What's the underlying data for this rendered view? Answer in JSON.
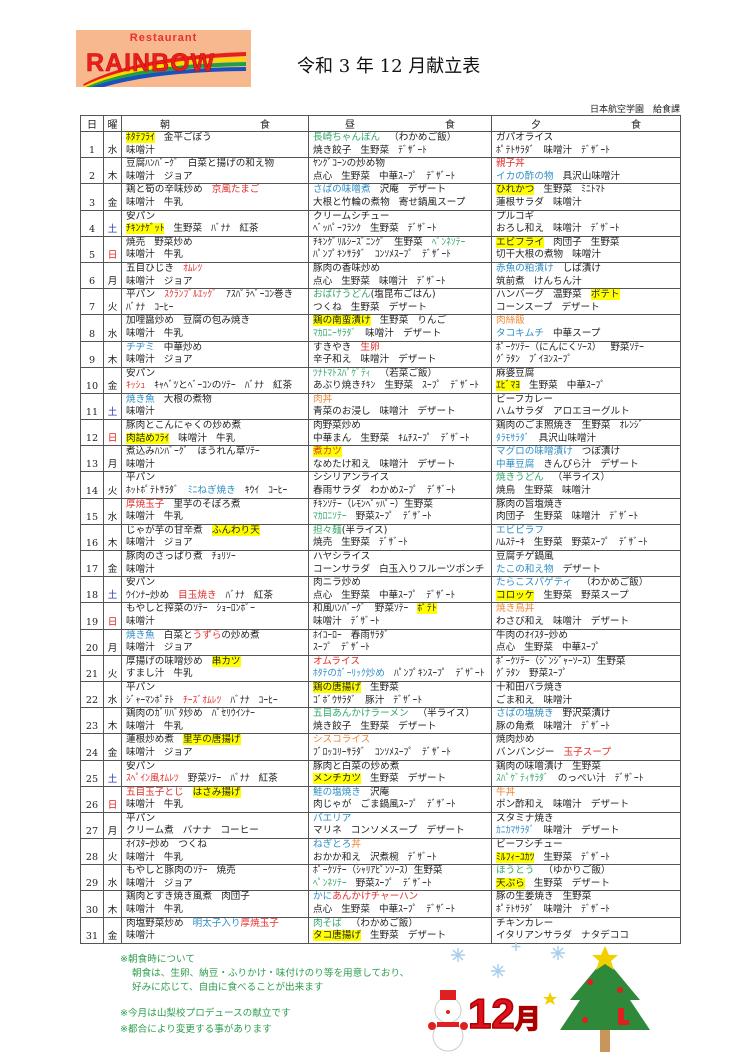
{
  "header": {
    "logo_top": "Restaurant",
    "logo_main": "RAINBOW",
    "title": "令和 3 年 12 月献立表",
    "org": "日本航空学園　給食課"
  },
  "columns": {
    "day": "日",
    "weekday": "曜",
    "breakfast": [
      "朝",
      "食"
    ],
    "lunch": [
      "昼",
      "食"
    ],
    "dinner": [
      "夕",
      "食"
    ]
  },
  "colors": {
    "highlight": "#ffff00",
    "red": "#e3302c",
    "blue": "#2f8ec6",
    "green": "#33a86a",
    "orange": "#ee8a3a",
    "saturday": "#3040b0",
    "sunday": "#e02020",
    "notes": "#2e9e4e"
  },
  "days": [
    {
      "d": "1",
      "w": "水",
      "b": [
        [
          [
            "ﾎﾀﾃﾌﾗｲ",
            "y"
          ],
          "金平ごぼう"
        ],
        [
          "味噌汁"
        ]
      ],
      "l": [
        [
          [
            "長崎ちゃんぽん",
            "g"
          ],
          "（わかめご飯）"
        ],
        [
          "焼き餃子",
          "生野菜",
          "ﾃﾞｻﾞｰﾄ"
        ]
      ],
      "s": [
        [
          "ガパオライス"
        ],
        [
          "ﾎﾟﾃﾄｻﾗﾀﾞ",
          "味噌汁",
          "ﾃﾞｻﾞｰﾄ"
        ]
      ]
    },
    {
      "d": "2",
      "w": "木",
      "b": [
        [
          "豆腐ﾊﾝﾊﾞｰｸﾞ",
          "白菜と揚げの和え物"
        ],
        [
          "味噌汁",
          "ジョア"
        ]
      ],
      "l": [
        [
          "ﾔﾝｸﾞｺｰﾝの炒め物"
        ],
        [
          "点心",
          "生野菜",
          "中華ｽｰﾌﾟ",
          "ﾃﾞｻﾞｰﾄ"
        ]
      ],
      "s": [
        [
          [
            "親子丼",
            "r"
          ]
        ],
        [
          [
            "イカの酢の物",
            "b"
          ],
          "具沢山味噌汁"
        ]
      ]
    },
    {
      "d": "3",
      "w": "金",
      "b": [
        [
          "鶏と筍の辛味炒め",
          [
            "京風たまご",
            "r"
          ]
        ],
        [
          "味噌汁",
          "牛乳"
        ]
      ],
      "l": [
        [
          [
            "さばの味噌煮",
            "b"
          ],
          "沢庵",
          "デザート"
        ],
        [
          "大根と竹輪の煮物",
          "寄せ鍋風スープ"
        ]
      ],
      "s": [
        [
          [
            "ひれかつ",
            "y"
          ],
          "生野菜",
          "ﾐﾆﾄﾏﾄ"
        ],
        [
          "蓮根サラダ",
          "味噌汁"
        ]
      ]
    },
    {
      "d": "4",
      "w": "土",
      "b": [
        [
          "安パン"
        ],
        [
          [
            "ﾁｷﾝﾅｹﾞｯﾄ",
            "y"
          ],
          "生野菜",
          "ﾊﾞﾅﾅ",
          "紅茶"
        ]
      ],
      "l": [
        [
          "クリームシチュー"
        ],
        [
          "ﾍﾞｯﾊﾟｰﾌﾗﾝｸ",
          "生野菜",
          "ﾃﾞｻﾞｰﾄ"
        ]
      ],
      "s": [
        [
          "プルコギ"
        ],
        [
          "おろし和え",
          "味噌汁",
          "ﾃﾞｻﾞｰﾄ"
        ]
      ]
    },
    {
      "d": "5",
      "w": "日",
      "b": [
        [
          "焼売",
          "野菜炒め"
        ],
        [
          "味噌汁",
          "牛乳"
        ]
      ],
      "l": [
        [
          "ﾁｷﾝｸﾞﾘﾙｼｰｽﾞﾆﾝｸﾞ",
          "生野菜",
          [
            "ﾍﾟﾝﾈｿﾃｰ",
            "g"
          ]
        ],
        [
          "ﾊﾟﾝﾌﾟｷﾝｻﾗﾀﾞ",
          "ｺﾝｿﾒｽｰﾌﾟ",
          "ﾃﾞｻﾞｰﾄ"
        ]
      ],
      "s": [
        [
          [
            "エビフライ",
            "y"
          ],
          "肉団子",
          "生野菜"
        ],
        [
          "切干大根の煮物",
          "味噌汁"
        ]
      ]
    },
    {
      "d": "6",
      "w": "月",
      "b": [
        [
          "五目ひじき",
          [
            "ｵﾑﾚﾂ",
            "r"
          ]
        ],
        [
          "味噌汁",
          "ジョア"
        ]
      ],
      "l": [
        [
          "豚肉の香味炒め"
        ],
        [
          "点心",
          "生野菜",
          "味噌汁",
          "ﾃﾞｻﾞｰﾄ"
        ]
      ],
      "s": [
        [
          [
            "赤魚の粕漬け",
            "b"
          ],
          "しば漬け"
        ],
        [
          "筑前煮",
          "けんちん汁"
        ]
      ]
    },
    {
      "d": "7",
      "w": "火",
      "b": [
        [
          "平パン",
          [
            "ｽｸﾗﾝﾌﾞﾙｴｯｸﾞ",
            "r"
          ],
          "ｱｽﾊﾟﾗﾍﾞｰｺﾝ巻き"
        ],
        [
          "ﾊﾞﾅﾅ",
          "ｺｰﾋｰ"
        ]
      ],
      "l": [
        [
          [
            "おばけうどん",
            "g+"
          ],
          "(塩昆布ごはん)"
        ],
        [
          "つくね",
          "生野菜",
          "デザート"
        ]
      ],
      "s": [
        [
          "ハンバーグ",
          "温野菜",
          [
            "ポテト",
            "y"
          ]
        ],
        [
          "コーンスープ",
          "デザート"
        ]
      ]
    },
    {
      "d": "8",
      "w": "水",
      "b": [
        [
          "加哩醤炒め",
          "豆腐の包み焼き"
        ],
        [
          "味噌汁",
          "牛乳"
        ]
      ],
      "l": [
        [
          [
            "鶏の南蛮漬け",
            "y"
          ],
          "生野菜",
          "りんご"
        ],
        [
          [
            "ﾏｶﾛﾆｰｻﾗﾀﾞ",
            "g"
          ],
          "味噌汁",
          "デザート"
        ]
      ],
      "s": [
        [
          [
            "肉絲飯",
            "o"
          ]
        ],
        [
          [
            "タコキムチ",
            "b"
          ],
          "中華スープ"
        ]
      ]
    },
    {
      "d": "9",
      "w": "木",
      "b": [
        [
          [
            "チヂミ",
            "b"
          ],
          "中華炒め"
        ],
        [
          "味噌汁",
          "ジョア"
        ]
      ],
      "l": [
        [
          "すきやき",
          [
            "生卵",
            "r"
          ]
        ],
        [
          "辛子和え",
          "味噌汁",
          "デザート"
        ]
      ],
      "s": [
        [
          "ﾎﾟｰｸｿﾃｰ（にんにくｿｰｽ）",
          "野菜ｿﾃｰ"
        ],
        [
          "ｸﾞﾗﾀﾝ",
          "ﾌﾞｲﾖﾝｽｰﾌﾟ"
        ]
      ]
    },
    {
      "d": "10",
      "w": "金",
      "b": [
        [
          "安パン"
        ],
        [
          [
            "ｷｯｼｭ",
            "r"
          ],
          "ｷｬﾍﾞﾂとﾍﾞｰｺﾝのｿﾃｰ",
          "ﾊﾞﾅﾅ",
          "紅茶"
        ]
      ],
      "l": [
        [
          [
            "ﾂﾅﾄﾏﾄｽﾊﾟｹﾞﾃｨ",
            "g"
          ],
          "（若菜ご飯）"
        ],
        [
          "あぶり焼きﾁｷﾝ",
          "生野菜",
          "ｽｰﾌﾟ",
          "ﾃﾞｻﾞｰﾄ"
        ]
      ],
      "s": [
        [
          "麻婆豆腐"
        ],
        [
          [
            "ｴﾋﾞﾏﾖ",
            "y"
          ],
          "生野菜",
          "中華ｽｰﾌﾟ"
        ]
      ]
    },
    {
      "d": "11",
      "w": "土",
      "b": [
        [
          [
            "焼き魚",
            "b"
          ],
          "大根の煮物"
        ],
        [
          "味噌汁"
        ]
      ],
      "l": [
        [
          [
            "肉丼",
            "o"
          ]
        ],
        [
          "青菜のお浸し",
          "味噌汁",
          "デザート"
        ]
      ],
      "s": [
        [
          "ビーフカレー"
        ],
        [
          "ハムサラダ",
          "アロエヨーグルト"
        ]
      ]
    },
    {
      "d": "12",
      "w": "日",
      "b": [
        [
          "豚肉とこんにゃくの炒め煮"
        ],
        [
          [
            "肉詰めﾌﾗｲ",
            "y"
          ],
          "味噌汁",
          "牛乳"
        ]
      ],
      "l": [
        [
          "肉野菜炒め"
        ],
        [
          "中華まん",
          "生野菜",
          "ｷﾑﾁｽｰﾌﾟ",
          "ﾃﾞｻﾞｰﾄ"
        ]
      ],
      "s": [
        [
          "鶏肉のごま照焼き",
          "生野菜",
          "ｵﾚﾝｼﾞ"
        ],
        [
          [
            "ﾀﾗﾓｻﾗﾀﾞ",
            "b"
          ],
          "具沢山味噌汁"
        ]
      ]
    },
    {
      "d": "13",
      "w": "月",
      "b": [
        [
          "煮込みﾊﾝﾊﾞｰｸﾞ",
          "ほうれん草ｿﾃｰ"
        ],
        [
          "味噌汁"
        ]
      ],
      "l": [
        [
          [
            "煮カツ",
            "y r"
          ]
        ],
        [
          "なめたけ和え",
          "味噌汁",
          "デザート"
        ]
      ],
      "s": [
        [
          [
            "マグロの味噌漬け",
            "b"
          ],
          "つぼ漬け"
        ],
        [
          [
            "中華豆腐",
            "b"
          ],
          "きんぴら汁",
          "デザート"
        ]
      ]
    },
    {
      "d": "14",
      "w": "火",
      "b": [
        [
          "平パン"
        ],
        [
          "ﾎｯﾄﾎﾟﾃﾄｻﾗﾀﾞ",
          [
            "ﾐﾆねぎ焼き",
            "b"
          ],
          "ｷｳｲ",
          "ｺｰﾋｰ"
        ]
      ],
      "l": [
        [
          "シシリアンライス"
        ],
        [
          "春雨サラダ",
          "わかめｽｰﾌﾟ",
          "ﾃﾞｻﾞｰﾄ"
        ]
      ],
      "s": [
        [
          [
            "焼きうどん",
            "g"
          ],
          "（半ライス）"
        ],
        [
          "焼鳥",
          "生野菜",
          "味噌汁"
        ]
      ]
    },
    {
      "d": "15",
      "w": "水",
      "b": [
        [
          [
            "厚焼玉子",
            "r"
          ],
          "里芋のそぼろ煮"
        ],
        [
          "味噌汁",
          "牛乳"
        ]
      ],
      "l": [
        [
          "ﾁｷﾝｿﾃｰ（ﾚﾓﾝﾍﾟｯﾊﾟｰ）生野菜"
        ],
        [
          [
            "ﾏｶﾛﾆｿﾃｰ",
            "g"
          ],
          "野菜ｽｰﾌﾟ",
          "ﾃﾞｻﾞｰﾄ"
        ]
      ],
      "s": [
        [
          "豚肉の旨塩焼き"
        ],
        [
          "肉団子",
          "生野菜",
          "味噌汁",
          "ﾃﾞｻﾞｰﾄ"
        ]
      ]
    },
    {
      "d": "16",
      "w": "木",
      "b": [
        [
          "じゃが芋の甘辛煮",
          [
            "ふんわり天",
            "y"
          ]
        ],
        [
          "味噌汁",
          "ジョア"
        ]
      ],
      "l": [
        [
          [
            "担々麺",
            "g+"
          ],
          "(半ライス)"
        ],
        [
          "焼売",
          "生野菜",
          "ﾃﾞｻﾞｰﾄ"
        ]
      ],
      "s": [
        [
          [
            "エビピラフ",
            "b"
          ]
        ],
        [
          "ﾊﾑｽﾃｰｷ",
          "生野菜",
          "野菜ｽｰﾌﾟ",
          "ﾃﾞｻﾞｰﾄ"
        ]
      ]
    },
    {
      "d": "17",
      "w": "金",
      "b": [
        [
          "豚肉のさっぱり煮",
          "ﾁｮﾘｿｰ"
        ],
        [
          "味噌汁"
        ]
      ],
      "l": [
        [
          "ハヤシライス"
        ],
        [
          "コーンサラダ",
          "白玉入りフルーツポンチ"
        ]
      ],
      "s": [
        [
          "豆腐チゲ鍋風"
        ],
        [
          [
            "たこの和え物",
            "b"
          ],
          "デザート"
        ]
      ]
    },
    {
      "d": "18",
      "w": "土",
      "b": [
        [
          "安パン"
        ],
        [
          "ｳｲﾝﾅｰ炒め",
          [
            "目玉焼き",
            "r"
          ],
          "ﾊﾞﾅﾅ",
          "紅茶"
        ]
      ],
      "l": [
        [
          "肉ニラ炒め"
        ],
        [
          "点心",
          "生野菜",
          "中華ｽｰﾌﾟ",
          "ﾃﾞｻﾞｰﾄ"
        ]
      ],
      "s": [
        [
          [
            "たらこスパゲティ",
            "b"
          ],
          "（わかめご飯）"
        ],
        [
          [
            "コロッケ",
            "y"
          ],
          "生野菜",
          "野菜スープ"
        ]
      ]
    },
    {
      "d": "19",
      "w": "日",
      "b": [
        [
          "もやしと搾菜のｿﾃｰ",
          "ｼｮｰﾛﾝﾎﾟｰ"
        ],
        [
          "味噌汁"
        ]
      ],
      "l": [
        [
          "和風ﾊﾝﾊﾞｰｸﾞ",
          "野菜ｿﾃｰ",
          [
            "ﾎﾟﾃﾄ",
            "y"
          ]
        ],
        [
          "味噌汁",
          "ﾃﾞｻﾞｰﾄ"
        ]
      ],
      "s": [
        [
          [
            "焼き鳥丼",
            "o"
          ]
        ],
        [
          "わさび和え",
          "味噌汁",
          "デザート"
        ]
      ]
    },
    {
      "d": "20",
      "w": "月",
      "b": [
        [
          [
            "焼き魚",
            "b"
          ],
          [
            "白菜と",
            "+"
          ],
          [
            "うずら",
            "r+"
          ],
          "の炒め煮"
        ],
        [
          "味噌汁",
          "ジョア"
        ]
      ],
      "l": [
        [
          "ﾎｲｺｰﾛｰ",
          "春雨ｻﾗﾀﾞ"
        ],
        [
          "ｽｰﾌﾟ",
          "ﾃﾞｻﾞｰﾄ"
        ]
      ],
      "s": [
        [
          "牛肉のｵｲｽﾀｰ炒め"
        ],
        [
          "点心",
          "生野菜",
          "中華ｽｰﾌﾟ"
        ]
      ]
    },
    {
      "d": "21",
      "w": "火",
      "b": [
        [
          "厚揚げの味噌炒め",
          [
            "串カツ",
            "y"
          ]
        ],
        [
          "すまし汁",
          "牛乳"
        ]
      ],
      "l": [
        [
          [
            "オムライス",
            "r"
          ]
        ],
        [
          [
            "ﾎﾀﾃのｶﾞｰﾘｯｸ炒め",
            "b"
          ],
          "ﾊﾟﾝﾌﾟｷﾝｽｰﾌﾟ",
          "ﾃﾞｻﾞｰﾄ"
        ]
      ],
      "s": [
        [
          "ﾎﾟｰｸｿﾃｰ（ｼﾞﾝｼﾞｬｰｿｰｽ）生野菜"
        ],
        [
          "ｸﾞﾗﾀﾝ",
          "野菜ｽｰﾌﾟ"
        ]
      ]
    },
    {
      "d": "22",
      "w": "水",
      "b": [
        [
          "平パン"
        ],
        [
          "ｼﾞｬｰﾏﾝﾎﾟﾃﾄ",
          [
            "ﾁｰｽﾞｵﾑﾚﾂ",
            "r"
          ],
          "ﾊﾞﾅﾅ",
          "ｺｰﾋｰ"
        ]
      ],
      "l": [
        [
          [
            "鶏の唐揚げ",
            "y"
          ],
          "生野菜"
        ],
        [
          "ｺﾞﾎﾞｳｻﾗﾀﾞ",
          "豚汁",
          "ﾃﾞｻﾞｰﾄ"
        ]
      ],
      "s": [
        [
          "十和田バラ焼き"
        ],
        [
          "ごま和え",
          "味噌汁"
        ]
      ]
    },
    {
      "d": "23",
      "w": "木",
      "b": [
        [
          "鶏肉のｶﾞﾘﾊﾞﾀ炒め",
          "ﾊﾟｾﾘｳｲﾝﾅｰ"
        ],
        [
          "味噌汁",
          "牛乳"
        ]
      ],
      "l": [
        [
          [
            "五目あんかけラーメン",
            "g"
          ],
          "（半ライス）"
        ],
        [
          "焼き餃子",
          "生野菜",
          "デザート"
        ]
      ],
      "s": [
        [
          [
            "さばの塩焼き",
            "b"
          ],
          "野沢菜漬け"
        ],
        [
          "豚の角煮",
          "味噌汁",
          "ﾃﾞｻﾞｰﾄ"
        ]
      ]
    },
    {
      "d": "24",
      "w": "金",
      "b": [
        [
          "蓮根炒め煮",
          [
            "里芋の唐揚げ",
            "y"
          ]
        ],
        [
          "味噌汁",
          "ジョア"
        ]
      ],
      "l": [
        [
          [
            "シスコライス",
            "o"
          ]
        ],
        [
          "ﾌﾞﾛｯｺﾘｰｻﾗﾀﾞ",
          "ｺﾝｿﾒｽｰﾌﾟ",
          "ﾃﾞｻﾞｰﾄ"
        ]
      ],
      "s": [
        [
          "焼肉炒め"
        ],
        [
          "バンバンジー",
          [
            "玉子スープ",
            "r"
          ]
        ]
      ]
    },
    {
      "d": "25",
      "w": "土",
      "b": [
        [
          "安パン"
        ],
        [
          [
            "ｽﾍﾟｲﾝ風ｵﾑﾚﾂ",
            "r"
          ],
          "野菜ｿﾃｰ",
          "ﾊﾞﾅﾅ",
          "紅茶"
        ]
      ],
      "l": [
        [
          "豚肉と白菜の炒め煮"
        ],
        [
          [
            "メンチカツ",
            "y"
          ],
          "生野菜",
          "デザート"
        ]
      ],
      "s": [
        [
          "鶏肉の味噌漬け",
          "生野菜"
        ],
        [
          [
            "ｽﾊﾟｹﾞﾃｨｻﾗﾀﾞ",
            "g"
          ],
          "のっぺい汁",
          "ﾃﾞｻﾞｰﾄ"
        ]
      ]
    },
    {
      "d": "26",
      "w": "日",
      "b": [
        [
          [
            "五目玉子とじ",
            "r"
          ],
          [
            "はさみ揚げ",
            "y"
          ]
        ],
        [
          "味噌汁",
          "牛乳"
        ]
      ],
      "l": [
        [
          [
            "鮭の塩焼き",
            "b"
          ],
          "沢庵"
        ],
        [
          "肉じゃが",
          "ごま鍋風ｽｰﾌﾟ",
          "ﾃﾞｻﾞｰﾄ"
        ]
      ],
      "s": [
        [
          [
            "牛丼",
            "o"
          ]
        ],
        [
          "ポン酢和え",
          "味噌汁",
          "デザート"
        ]
      ]
    },
    {
      "d": "27",
      "w": "月",
      "b": [
        [
          "平パン"
        ],
        [
          "クリーム煮",
          "バナナ",
          "コーヒー"
        ]
      ],
      "l": [
        [
          [
            "パエリア",
            "b"
          ]
        ],
        [
          "マリネ",
          "コンソメスープ",
          "デザート"
        ]
      ],
      "s": [
        [
          "スタミナ焼き"
        ],
        [
          [
            "ｶﾆｶﾏｻﾗﾀﾞ",
            "b"
          ],
          "味噌汁",
          "デザート"
        ]
      ]
    },
    {
      "d": "28",
      "w": "火",
      "b": [
        [
          "ｵｲｽﾀｰ炒め",
          "つくね"
        ],
        [
          "味噌汁",
          "牛乳"
        ]
      ],
      "l": [
        [
          [
            "ねぎとろ",
            "b+"
          ],
          [
            "丼",
            "o"
          ]
        ],
        [
          "おかか和え",
          "沢煮椀",
          "ﾃﾞｻﾞｰﾄ"
        ]
      ],
      "s": [
        [
          "ビーフシチュー"
        ],
        [
          [
            "ﾐﾙﾌｨｰﾕｶﾂ",
            "y"
          ],
          "生野菜",
          "ﾃﾞｻﾞｰﾄ"
        ]
      ]
    },
    {
      "d": "29",
      "w": "水",
      "b": [
        [
          "もやしと豚肉のｿﾃｰ",
          "焼売"
        ],
        [
          "味噌汁",
          "ジョア"
        ]
      ],
      "l": [
        [
          "ﾎﾟｰｸｿﾃｰ（ｼｬﾘｱﾋﾟﾝｿｰｽ）生野菜"
        ],
        [
          [
            "ﾍﾟﾝﾈｿﾃｰ",
            "g"
          ],
          "野菜ｽｰﾌﾟ",
          "ﾃﾞｻﾞｰﾄ"
        ]
      ],
      "s": [
        [
          [
            "ほうとう",
            "g"
          ],
          "（ゆかりご飯）"
        ],
        [
          [
            "天ぷら",
            "y"
          ],
          "生野菜",
          "デザート"
        ]
      ]
    },
    {
      "d": "30",
      "w": "木",
      "b": [
        [
          "鶏肉とすき焼き風煮",
          "肉団子"
        ],
        [
          "味噌汁",
          "牛乳"
        ]
      ],
      "l": [
        [
          [
            "かに",
            "b+"
          ],
          [
            "あんかけチャーハン",
            "r"
          ]
        ],
        [
          "点心",
          "生野菜",
          "中華ｽｰﾌﾟ",
          "ﾃﾞｻﾞｰﾄ"
        ]
      ],
      "s": [
        [
          "豚の生姜焼き",
          "生野菜"
        ],
        [
          "ﾎﾟﾃﾄｻﾗﾀﾞ",
          "味噌汁",
          "ﾃﾞｻﾞｰﾄ"
        ]
      ]
    },
    {
      "d": "31",
      "w": "金",
      "b": [
        [
          "肉塩野菜炒め",
          [
            "明太子入り",
            "b+"
          ],
          [
            "厚焼玉子",
            "r"
          ]
        ],
        [
          "味噌汁"
        ]
      ],
      "l": [
        [
          [
            "肉そば",
            "g"
          ],
          "（わかめご飯）"
        ],
        [
          [
            "タコ唐揚げ",
            "y"
          ],
          "生野菜",
          "デザート"
        ]
      ],
      "s": [
        [
          "チキンカレー"
        ],
        [
          "イタリアンサラダ",
          "ナタデココ"
        ]
      ]
    }
  ],
  "notes": {
    "breakfast_title": "※朝食時について",
    "breakfast_line1": "朝食は、生卵、納豆・ふりかけ・味付けのり等を用意しており、",
    "breakfast_line2": "好みに応じて、自由に食べることが出来ます",
    "produce": "※今月は山梨校プロデュースの献立です",
    "change": "※都合により変更する事があります"
  },
  "decoration": {
    "month_num": "12",
    "month_kanji": "月",
    "icons": [
      "snowman-icon",
      "christmas-tree-icon",
      "snowflake-icon",
      "star-icon"
    ]
  }
}
